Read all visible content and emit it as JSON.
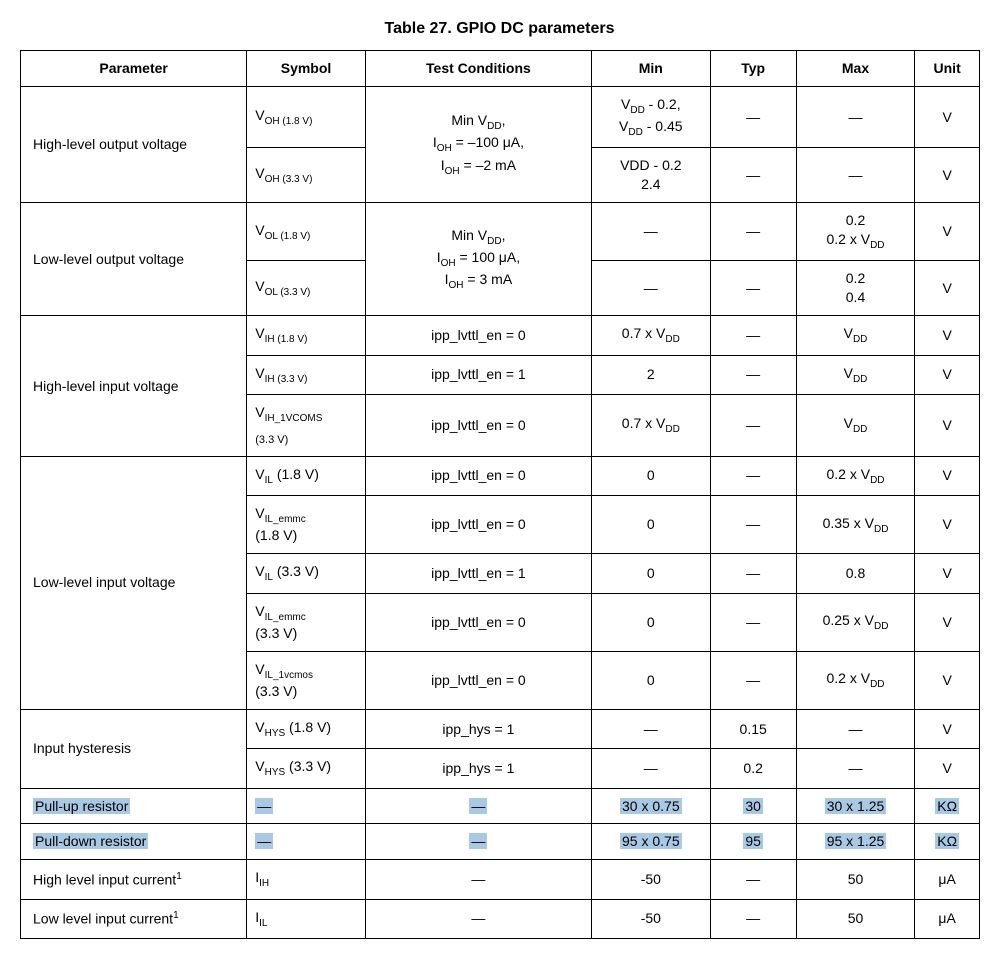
{
  "caption": "Table 27. GPIO DC parameters",
  "headers": {
    "parameter": "Parameter",
    "symbol": "Symbol",
    "conditions": "Test Conditions",
    "min": "Min",
    "typ": "Typ",
    "max": "Max",
    "unit": "Unit"
  },
  "dash": "—",
  "mu": "μ",
  "ohm": "Ω",
  "voh": {
    "param": "High-level output voltage",
    "sym18_main": "V",
    "sym18_sub": "OH (1.8 V)",
    "sym33_main": "V",
    "sym33_sub": "OH (3.3 V)",
    "cond_l1a": "Min V",
    "cond_l1b": "DD",
    "cond_l1c": ",",
    "cond_l2a": "I",
    "cond_l2b": "OH",
    "cond_l2c": " = –100 ",
    "cond_l2d": "A,",
    "cond_l3a": "I",
    "cond_l3b": "OH",
    "cond_l3c": " = –2 mA",
    "min18_l1a": "V",
    "min18_l1b": "DD",
    "min18_l1c": " - 0.2,",
    "min18_l2a": "V",
    "min18_l2b": "DD",
    "min18_l2c": " - 0.45",
    "min33_l1": "VDD - 0.2",
    "min33_l2": "2.4",
    "unit": "V"
  },
  "vol": {
    "param": "Low-level output voltage",
    "sym18_main": "V",
    "sym18_sub": "OL (1.8 V)",
    "sym33_main": "V",
    "sym33_sub": "OL (3.3 V)",
    "cond_l1a": "Min V",
    "cond_l1b": "DD",
    "cond_l1c": ",",
    "cond_l2a": "I",
    "cond_l2b": "OH",
    "cond_l2c": " = 100 ",
    "cond_l2d": "A,",
    "cond_l3a": "I",
    "cond_l3b": "OH",
    "cond_l3c": " = 3 mA",
    "max18_l1": "0.2",
    "max18_l2a": "0.2 x V",
    "max18_l2b": "DD",
    "max33_l1": "0.2",
    "max33_l2": "0.4",
    "unit": "V"
  },
  "vih": {
    "param": "High-level input voltage",
    "r1_sym_main": "V",
    "r1_sym_sub": "IH (1.8 V)",
    "r1_cond": "ipp_lvttl_en = 0",
    "r1_min_a": "0.7 x V",
    "r1_min_b": "DD",
    "r1_max_a": "V",
    "r1_max_b": "DD",
    "r2_sym_main": "V",
    "r2_sym_sub": "IH (3.3 V)",
    "r2_cond": "ipp_lvttl_en = 1",
    "r2_min": "2",
    "r2_max_a": "V",
    "r2_max_b": "DD",
    "r3_sym_main": "V",
    "r3_sym_sub": "IH_1VCOMS",
    "r3_sym_l2": "(3.3 V)",
    "r3_cond": "ipp_lvttl_en = 0",
    "r3_min_a": "0.7 x V",
    "r3_min_b": "DD",
    "r3_max_a": "V",
    "r3_max_b": "DD",
    "unit": "V"
  },
  "vil": {
    "param": "Low-level input voltage",
    "r1_sym_main": "V",
    "r1_sym_sub": "IL",
    "r1_sym_volt": " (1.8 V)",
    "r1_cond": "ipp_lvttl_en = 0",
    "r1_min": "0",
    "r1_max_a": "0.2 x V",
    "r1_max_b": "DD",
    "r2_sym_main": "V",
    "r2_sym_sub": "IL_emmc",
    "r2_sym_l2": "(1.8 V)",
    "r2_cond": "ipp_lvttl_en = 0",
    "r2_min": "0",
    "r2_max_a": "0.35 x V",
    "r2_max_b": "DD",
    "r3_sym_main": "V",
    "r3_sym_sub": "IL",
    "r3_sym_volt": " (3.3 V)",
    "r3_cond": "ipp_lvttl_en = 1",
    "r3_min": "0",
    "r3_max": "0.8",
    "r4_sym_main": "V",
    "r4_sym_sub": "IL_emmc",
    "r4_sym_l2": "(3.3 V)",
    "r4_cond": "ipp_lvttl_en = 0",
    "r4_min": "0",
    "r4_max_a": "0.25 x V",
    "r4_max_b": "DD",
    "r5_sym_main": "V",
    "r5_sym_sub": "IL_1vcmos",
    "r5_sym_l2": "(3.3 V)",
    "r5_cond": "ipp_lvttl_en = 0",
    "r5_min": "0",
    "r5_max_a": "0.2 x V",
    "r5_max_b": "DD",
    "unit": "V"
  },
  "vhys": {
    "param": "Input hysteresis",
    "r1_sym_main": "V",
    "r1_sym_sub": "HYS",
    "r1_sym_volt": " (1.8 V)",
    "r1_cond": "ipp_hys = 1",
    "r1_typ": "0.15",
    "r2_sym_main": "V",
    "r2_sym_sub": "HYS",
    "r2_sym_volt": " (3.3 V)",
    "r2_cond": "ipp_hys = 1",
    "r2_typ": "0.2",
    "unit": "V"
  },
  "pullup": {
    "param": "Pull-up resistor",
    "min": "30 x 0.75",
    "typ": "30",
    "max": "30 x 1.25",
    "unit_pre": "K"
  },
  "pulldown": {
    "param": "Pull-down resistor",
    "min": "95 x 0.75",
    "typ": "95",
    "max": "95 x 1.25",
    "unit_pre": "K"
  },
  "iih": {
    "param_a": "High level input current",
    "note": "1",
    "sym_main": "I",
    "sym_sub": "IH",
    "min": "-50",
    "max": "50",
    "unit_suf": "A"
  },
  "iil": {
    "param_a": "Low level input current",
    "note": "1",
    "sym_main": "I",
    "sym_sub": "IL",
    "min": "-50",
    "max": "50",
    "unit_suf": "A"
  }
}
